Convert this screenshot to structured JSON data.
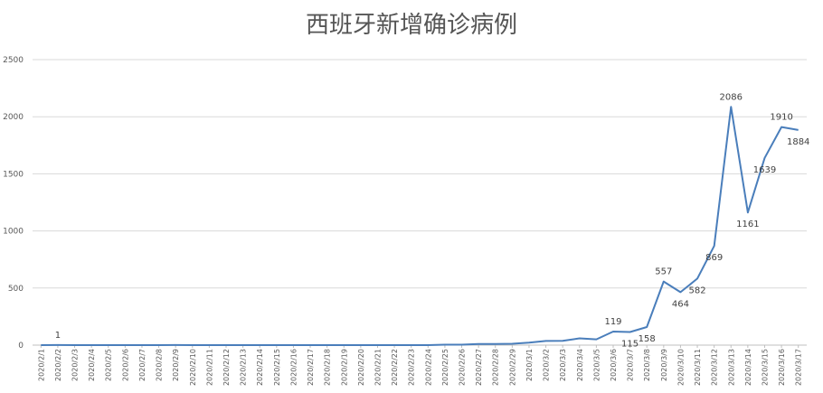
{
  "chart_data": {
    "type": "line",
    "title": "西班牙新增确诊病例",
    "xlabel": "",
    "ylabel": "",
    "ylim": [
      0,
      2500
    ],
    "yticks": [
      0,
      500,
      1000,
      1500,
      2000,
      2500
    ],
    "grid": true,
    "legend": "none",
    "color": "#4a7ebb",
    "categories": [
      "2020/2/1",
      "2020/2/2",
      "2020/2/3",
      "2020/2/4",
      "2020/2/5",
      "2020/2/6",
      "2020/2/7",
      "2020/2/8",
      "2020/2/9",
      "2020/2/10",
      "2020/2/11",
      "2020/2/12",
      "2020/2/13",
      "2020/2/14",
      "2020/2/15",
      "2020/2/16",
      "2020/2/17",
      "2020/2/18",
      "2020/2/19",
      "2020/2/20",
      "2020/2/21",
      "2020/2/22",
      "2020/2/23",
      "2020/2/24",
      "2020/2/25",
      "2020/2/26",
      "2020/2/27",
      "2020/2/28",
      "2020/2/29",
      "2020/3/1",
      "2020/3/2",
      "2020/3/3",
      "2020/3/4",
      "2020/3/5",
      "2020/3/6",
      "2020/3/7",
      "2020/3/8",
      "2020/3/9",
      "2020/3/10",
      "2020/3/11",
      "2020/3/12",
      "2020/3/13",
      "2020/3/14",
      "2020/3/15",
      "2020/3/16",
      "2020/3/17"
    ],
    "values": [
      0,
      1,
      0,
      0,
      0,
      0,
      0,
      0,
      1,
      0,
      0,
      0,
      0,
      0,
      0,
      0,
      0,
      0,
      0,
      0,
      0,
      0,
      0,
      0,
      4,
      4,
      10,
      10,
      12,
      21,
      36,
      37,
      59,
      51,
      119,
      115,
      158,
      557,
      464,
      582,
      869,
      2086,
      1161,
      1639,
      1910,
      1884
    ],
    "data_labels": [
      {
        "index": 1,
        "text": "1"
      },
      {
        "index": 34,
        "text": "119"
      },
      {
        "index": 35,
        "text": "115"
      },
      {
        "index": 36,
        "text": "158"
      },
      {
        "index": 37,
        "text": "557"
      },
      {
        "index": 38,
        "text": "464"
      },
      {
        "index": 39,
        "text": "582"
      },
      {
        "index": 40,
        "text": "869"
      },
      {
        "index": 41,
        "text": "2086"
      },
      {
        "index": 42,
        "text": "1161"
      },
      {
        "index": 43,
        "text": "1639"
      },
      {
        "index": 44,
        "text": "1910"
      },
      {
        "index": 45,
        "text": "1884"
      }
    ]
  }
}
